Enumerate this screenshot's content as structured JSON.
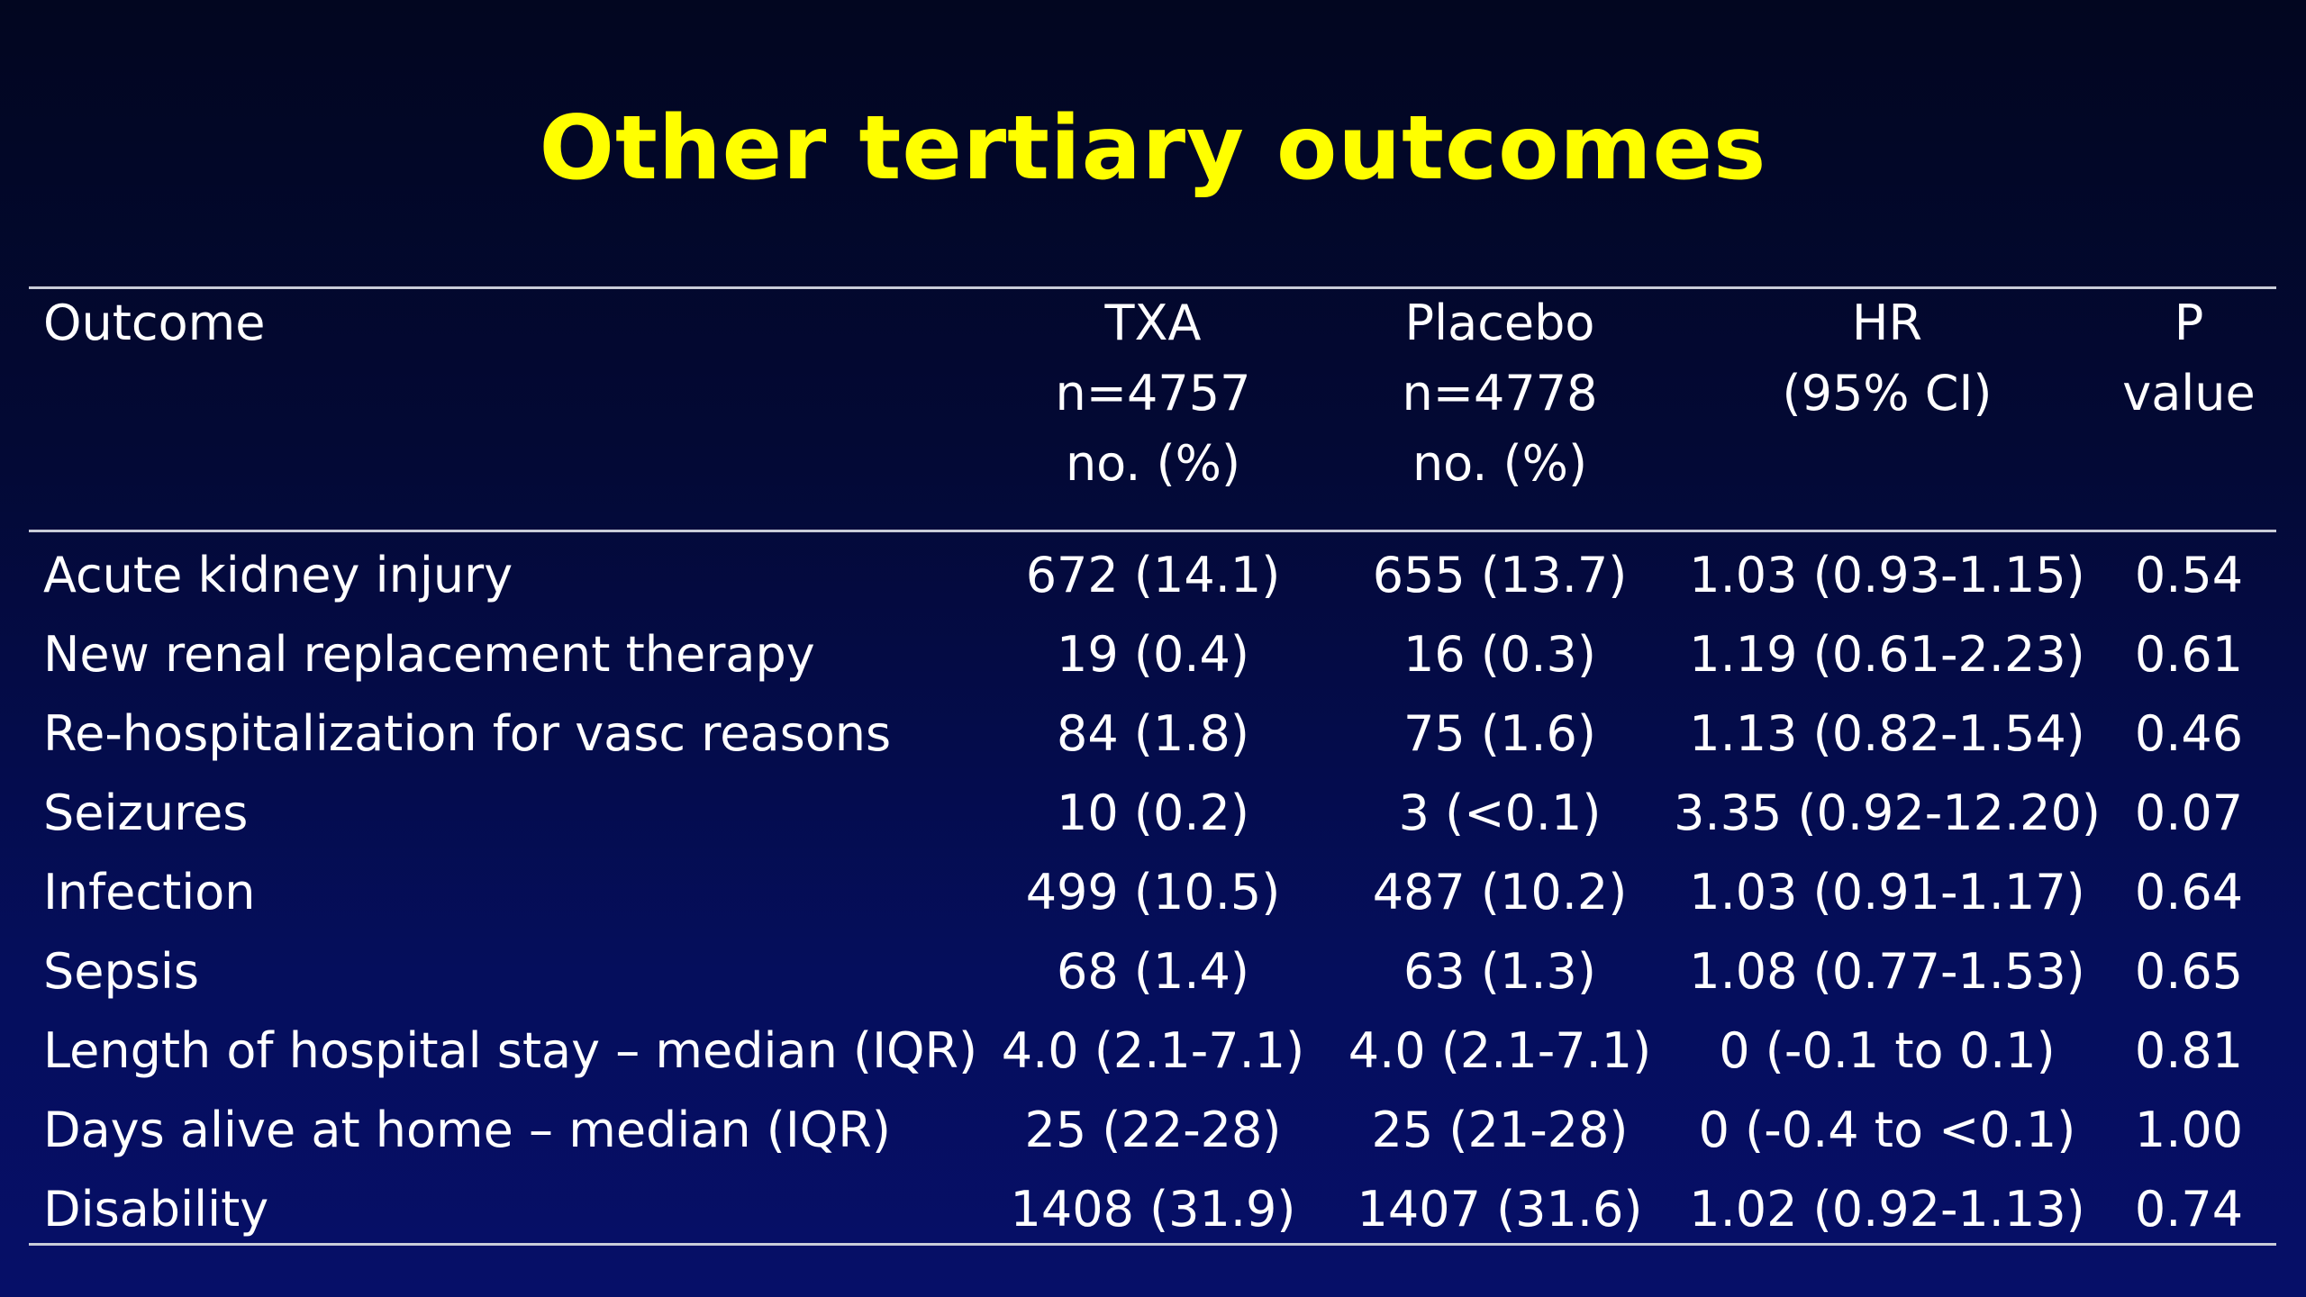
{
  "title": "Other tertiary outcomes",
  "header": {
    "outcome": [
      "Outcome"
    ],
    "txa": [
      "TXA",
      "n=4757",
      "no. (%)"
    ],
    "placebo": [
      "Placebo",
      "n=4778",
      "no. (%)"
    ],
    "hr": [
      "HR",
      "(95% CI)"
    ],
    "p": [
      "P",
      "value"
    ]
  },
  "rows": [
    {
      "outcome": "Acute kidney injury",
      "txa": "672 (14.1)",
      "placebo": "655 (13.7)",
      "hr": "1.03 (0.93-1.15)",
      "p": "0.54"
    },
    {
      "outcome": "New renal replacement therapy",
      "txa": "19 (0.4)",
      "placebo": "16 (0.3)",
      "hr": "1.19 (0.61-2.23)",
      "p": "0.61"
    },
    {
      "outcome": "Re-hospitalization for vasc reasons",
      "txa": "84 (1.8)",
      "placebo": "75 (1.6)",
      "hr": "1.13 (0.82-1.54)",
      "p": "0.46"
    },
    {
      "outcome": "Seizures",
      "txa": "10 (0.2)",
      "placebo": "3 (<0.1)",
      "hr": "3.35 (0.92-12.20)",
      "p": "0.07"
    },
    {
      "outcome": "Infection",
      "txa": "499 (10.5)",
      "placebo": "487 (10.2)",
      "hr": "1.03 (0.91-1.17)",
      "p": "0.64"
    },
    {
      "outcome": "Sepsis",
      "txa": "68 (1.4)",
      "placebo": "63 (1.3)",
      "hr": "1.08 (0.77-1.53)",
      "p": "0.65"
    },
    {
      "outcome": "Length of hospital stay – median (IQR)",
      "txa": "4.0 (2.1-7.1)",
      "placebo": "4.0 (2.1-7.1)",
      "hr": "0 (-0.1 to 0.1)",
      "p": "0.81"
    },
    {
      "outcome": "Days alive at home – median (IQR)",
      "txa": "25 (22-28)",
      "placebo": "25 (21-28)",
      "hr": "0 (-0.4 to <0.1)",
      "p": "1.00"
    },
    {
      "outcome": "Disability",
      "txa": "1408 (31.9)",
      "placebo": "1407 (31.6)",
      "hr": "1.02 (0.92-1.13)",
      "p": "0.74"
    }
  ],
  "colors": {
    "title": "#ffff00",
    "text": "#ffffff",
    "rule": "#c9ccd8",
    "background_top": "#020620",
    "background_bottom": "#060f68"
  }
}
